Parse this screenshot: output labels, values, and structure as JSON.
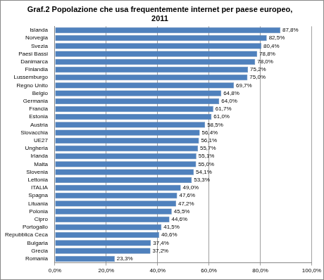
{
  "chart_data": {
    "type": "bar",
    "orientation": "horizontal",
    "title": "Graf.2 Popolazione che usa frequentemente internet per paese europeo, 2011",
    "categories": [
      "Islanda",
      "Norvegia",
      "Svezia",
      "Paesi Bassi",
      "Danimarca",
      "Finlandia",
      "Lussemburgo",
      "Regno Unito",
      "Belgio",
      "Germania",
      "Francia",
      "Estonia",
      "Austria",
      "Slovacchia",
      "UE27",
      "Ungheria",
      "Irlanda",
      "Malta",
      "Slovenia",
      "Lettonia",
      "ITALIA",
      "Spagna",
      "Lituania",
      "Polonia",
      "Cipro",
      "Portogallo",
      "Repubblica Ceca",
      "Bulgaria",
      "Grecia",
      "Romania"
    ],
    "values": [
      87.8,
      82.5,
      80.4,
      78.8,
      78.0,
      75.2,
      75.0,
      69.7,
      64.8,
      64.0,
      61.7,
      61.0,
      58.5,
      56.4,
      56.1,
      55.7,
      55.1,
      55.0,
      54.1,
      53.3,
      49.0,
      47.6,
      47.2,
      45.5,
      44.6,
      41.5,
      40.6,
      37.4,
      37.2,
      23.3
    ],
    "value_labels": [
      "87,8%",
      "82,5%",
      "80,4%",
      "78,8%",
      "78,0%",
      "75,2%",
      "75,0%",
      "69,7%",
      "64,8%",
      "64,0%",
      "61,7%",
      "61,0%",
      "58,5%",
      "56,4%",
      "56,1%",
      "55,7%",
      "55,1%",
      "55,0%",
      "54,1%",
      "53,3%",
      "49,0%",
      "47,6%",
      "47,2%",
      "45,5%",
      "44,6%",
      "41,5%",
      "40,6%",
      "37,4%",
      "37,2%",
      "23,3%"
    ],
    "data_labels": true,
    "color": "#4f81bd",
    "xlim": [
      0,
      100
    ],
    "xticks": [
      {
        "value": 0,
        "label": "0,0%"
      },
      {
        "value": 20,
        "label": "20,0%"
      },
      {
        "value": 40,
        "label": "40,0%"
      },
      {
        "value": 60,
        "label": "60,0%"
      },
      {
        "value": 80,
        "label": "80,0%"
      },
      {
        "value": 100,
        "label": "100,0%"
      }
    ],
    "grid": true
  }
}
